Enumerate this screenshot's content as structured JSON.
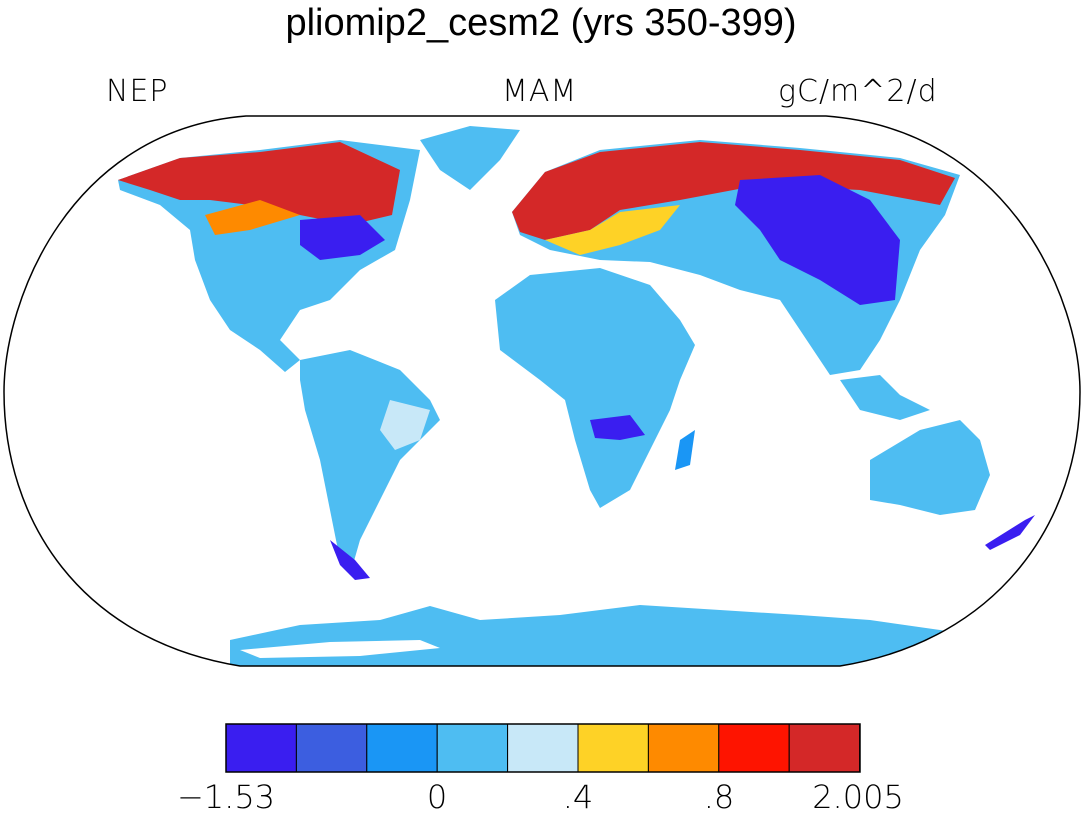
{
  "title": "pliomip2_cesm2 (yrs 350-399)",
  "left_label": "NEP",
  "center_label": "MAM",
  "right_label": "gC/m^2/d",
  "colorbar": {
    "colors": [
      "#3a1ef0",
      "#3c5ee0",
      "#1a96f5",
      "#4ebdf2",
      "#c8e8f8",
      "#fed226",
      "#fe8a00",
      "#fe1400",
      "#d42828"
    ],
    "tick_labels": [
      "−1.53",
      "0",
      ".4",
      ".8",
      "2.005"
    ]
  }
}
